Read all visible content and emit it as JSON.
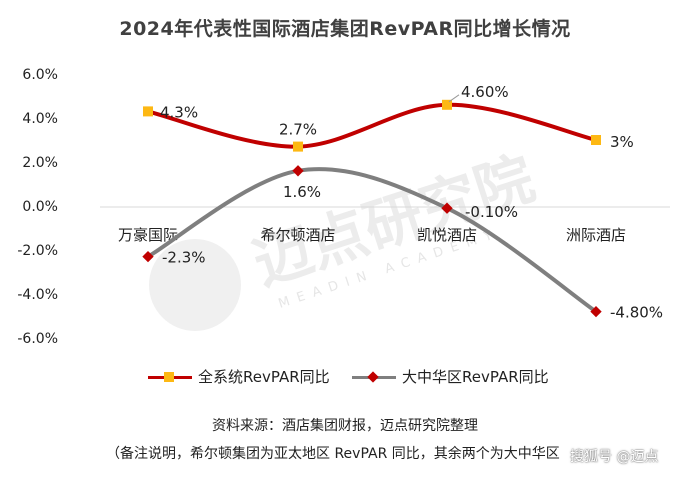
{
  "chart_data": {
    "type": "line",
    "title": "2024年代表性国际酒店集团RevPAR同比增长情况",
    "categories": [
      "万豪国际",
      "希尔顿酒店",
      "凯悦酒店",
      "洲际酒店"
    ],
    "ylim": [
      -6.0,
      6.0
    ],
    "yticks": [
      "6.0%",
      "4.0%",
      "2.0%",
      "0.0%",
      "-2.0%",
      "-4.0%",
      "-6.0%"
    ],
    "ytick_values": [
      6,
      4,
      2,
      0,
      -2,
      -4,
      -6
    ],
    "grid": false,
    "legend_position": "bottom",
    "series": [
      {
        "name": "全系统RevPAR同比",
        "values": [
          4.3,
          2.7,
          4.6,
          3.0
        ],
        "labels": [
          "4.3%",
          "2.7%",
          "4.60%",
          "3%"
        ],
        "line_color": "#c00000",
        "marker_color": "#fdb813",
        "marker": "square"
      },
      {
        "name": "大中华区RevPAR同比",
        "values": [
          -2.3,
          1.6,
          -0.1,
          -4.8
        ],
        "labels": [
          "-2.3%",
          "1.6%",
          "-0.10%",
          "-4.80%"
        ],
        "line_color": "#7f7f7f",
        "marker_color": "#c00000",
        "marker": "diamond"
      }
    ]
  },
  "footnotes": {
    "source": "资料来源：酒店集团财报，迈点研究院整理",
    "note": "（备注说明，希尔顿集团为亚太地区 RevPAR 同比，其余两个为大中华区"
  },
  "watermark": {
    "brand": "迈点研究院",
    "brand_en": "MEADIN ACADEMY",
    "corner": "搜狐号 @迈点"
  }
}
